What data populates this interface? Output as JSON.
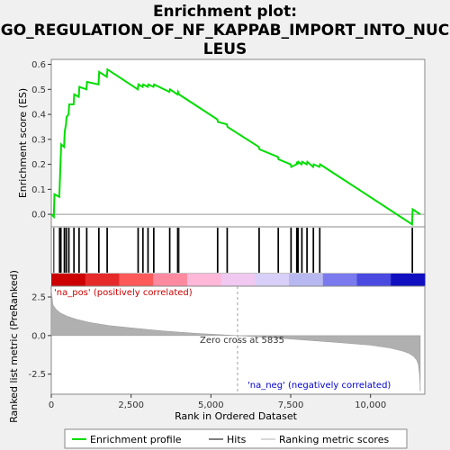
{
  "chart_data": {
    "type": "line",
    "title_lines": [
      "Enrichment plot:",
      "GO_REGULATION_OF_NF_KAPPAB_IMPORT_INTO_NUC",
      "LEUS"
    ],
    "ylabel_top": "Enrichment score (ES)",
    "ylabel_bottom": "Ranked list metric (PreRanked)",
    "xlabel": "Rank in Ordered Dataset",
    "x_ticks": [
      0,
      2500,
      5000,
      7500,
      10000
    ],
    "x_tick_labels": [
      "0",
      "2,500",
      "5,000",
      "7,500",
      "10,000"
    ],
    "xlim": [
      0,
      11700
    ],
    "es_ylim": [
      -0.05,
      0.62
    ],
    "es_y_ticks": [
      0.0,
      0.1,
      0.2,
      0.3,
      0.4,
      0.5,
      0.6
    ],
    "es_y_tick_labels": [
      "0.0",
      "0.1",
      "0.2",
      "0.3",
      "0.4",
      "0.5",
      "0.6"
    ],
    "metric_ylim": [
      -3.8,
      3.2
    ],
    "metric_y_ticks": [
      2.5,
      0.0,
      -2.5
    ],
    "metric_y_tick_labels": [
      "2.5",
      "0.0",
      "-2.5"
    ],
    "es_profile": {
      "x": [
        0,
        80,
        100,
        250,
        270,
        290,
        310,
        400,
        420,
        460,
        480,
        540,
        560,
        700,
        720,
        860,
        880,
        1100,
        1120,
        1480,
        1500,
        1740,
        1760,
        2710,
        2730,
        2860,
        2880,
        3020,
        3040,
        3200,
        3220,
        3700,
        3720,
        3950,
        3970,
        4000,
        5200,
        5220,
        5500,
        5520,
        6500,
        6520,
        7100,
        7120,
        7500,
        7520,
        7680,
        7700,
        7720,
        7740,
        7840,
        7860,
        8000,
        8020,
        8200,
        8220,
        8400,
        8420,
        11300,
        11320,
        11560
      ],
      "y": [
        0.0,
        -0.01,
        0.08,
        0.07,
        0.14,
        0.21,
        0.28,
        0.27,
        0.33,
        0.36,
        0.39,
        0.4,
        0.44,
        0.44,
        0.48,
        0.47,
        0.51,
        0.5,
        0.53,
        0.52,
        0.57,
        0.55,
        0.58,
        0.5,
        0.52,
        0.51,
        0.52,
        0.51,
        0.52,
        0.51,
        0.52,
        0.49,
        0.5,
        0.48,
        0.49,
        0.48,
        0.38,
        0.37,
        0.36,
        0.35,
        0.27,
        0.26,
        0.23,
        0.22,
        0.2,
        0.19,
        0.2,
        0.21,
        0.2,
        0.21,
        0.2,
        0.21,
        0.2,
        0.21,
        0.19,
        0.2,
        0.19,
        0.2,
        -0.04,
        0.02,
        0.0
      ]
    },
    "hits": [
      80,
      250,
      270,
      290,
      310,
      400,
      420,
      460,
      480,
      540,
      560,
      700,
      720,
      860,
      880,
      1100,
      1120,
      1480,
      1500,
      1740,
      1760,
      2710,
      2730,
      2860,
      2880,
      3020,
      3040,
      3200,
      3220,
      3700,
      3720,
      3950,
      3970,
      4000,
      5200,
      5220,
      5500,
      5520,
      6500,
      6520,
      7100,
      7120,
      7500,
      7520,
      7680,
      7700,
      7720,
      7740,
      7840,
      7860,
      8000,
      8020,
      8200,
      8220,
      8400,
      8420,
      11300,
      11320
    ],
    "metric_curve": {
      "x": [
        0,
        50,
        150,
        300,
        500,
        800,
        1200,
        1800,
        2500,
        3500,
        4500,
        5835,
        7000,
        8000,
        9000,
        10000,
        10600,
        11000,
        11200,
        11350,
        11450,
        11500,
        11540,
        11560
      ],
      "y": [
        3.0,
        2.0,
        1.7,
        1.45,
        1.25,
        1.05,
        0.85,
        0.65,
        0.5,
        0.3,
        0.15,
        0.0,
        -0.15,
        -0.3,
        -0.45,
        -0.62,
        -0.8,
        -1.0,
        -1.15,
        -1.35,
        -1.6,
        -1.9,
        -2.6,
        -3.6
      ]
    },
    "zero_cross": 5835,
    "annotations": {
      "pos": "'na_pos' (positively correlated)",
      "neg": "'na_neg' (negatively correlated)",
      "zero": "Zero cross at 5835"
    },
    "colors": {
      "es_line": "#00dd00",
      "hit": "#000000",
      "metric_fill": "#b0b0b0",
      "pos_text": "#cc0000",
      "neg_text": "#0000cc",
      "zero_line": "#a0a0a0"
    },
    "heat_colors": [
      "#cc0000",
      "#e62a2a",
      "#ff5a5a",
      "#ff8aa0",
      "#ffb8d8",
      "#f0c8f0",
      "#d8d0f8",
      "#b8b8f0",
      "#7a7aee",
      "#4a4ae0",
      "#1010c0"
    ],
    "legend": {
      "items": [
        "Enrichment profile",
        "Hits",
        "Ranking metric scores"
      ]
    }
  }
}
